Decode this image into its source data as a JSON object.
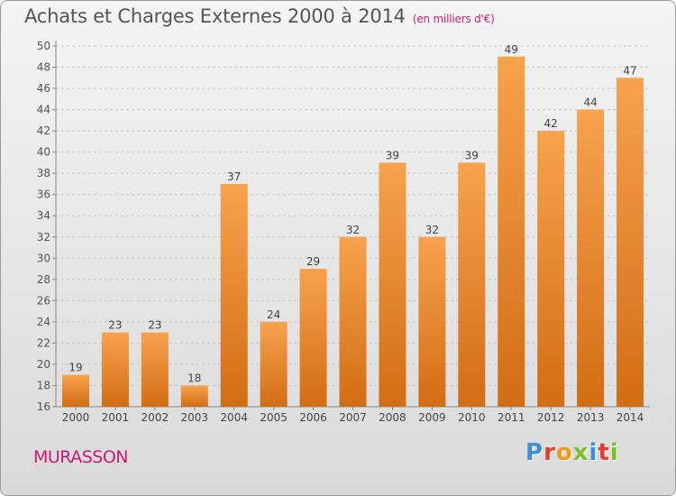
{
  "header": {
    "title": "Achats et Charges Externes 2000 à 2014",
    "subtitle": "(en milliers d'€)"
  },
  "footer": {
    "commune": "MURASSON",
    "logo_letters": [
      "P",
      "r",
      "o",
      "x",
      "i",
      "t",
      "i"
    ]
  },
  "colors": {
    "bar_light": "#f7a24e",
    "bar_dark": "#d26d13",
    "accent": "#cc1a75",
    "logo": [
      "#3a8fd6",
      "#e83a2a",
      "#f29a18",
      "#7bbf2a",
      "#3a8fd6",
      "#e83a2a",
      "#7bbf2a"
    ]
  },
  "chart_data": {
    "type": "bar",
    "categories": [
      "2000",
      "2001",
      "2002",
      "2003",
      "2004",
      "2005",
      "2006",
      "2007",
      "2008",
      "2009",
      "2010",
      "2011",
      "2012",
      "2013",
      "2014"
    ],
    "values": [
      19,
      23,
      23,
      18,
      37,
      24,
      29,
      32,
      39,
      32,
      39,
      49,
      42,
      44,
      47
    ],
    "title": "Achats et Charges Externes 2000 à 2014",
    "ylim": [
      16,
      50
    ],
    "yticks": [
      16,
      18,
      20,
      22,
      24,
      26,
      28,
      30,
      32,
      34,
      36,
      38,
      40,
      42,
      44,
      46,
      48,
      50
    ],
    "grid": true,
    "data_labels": true
  }
}
